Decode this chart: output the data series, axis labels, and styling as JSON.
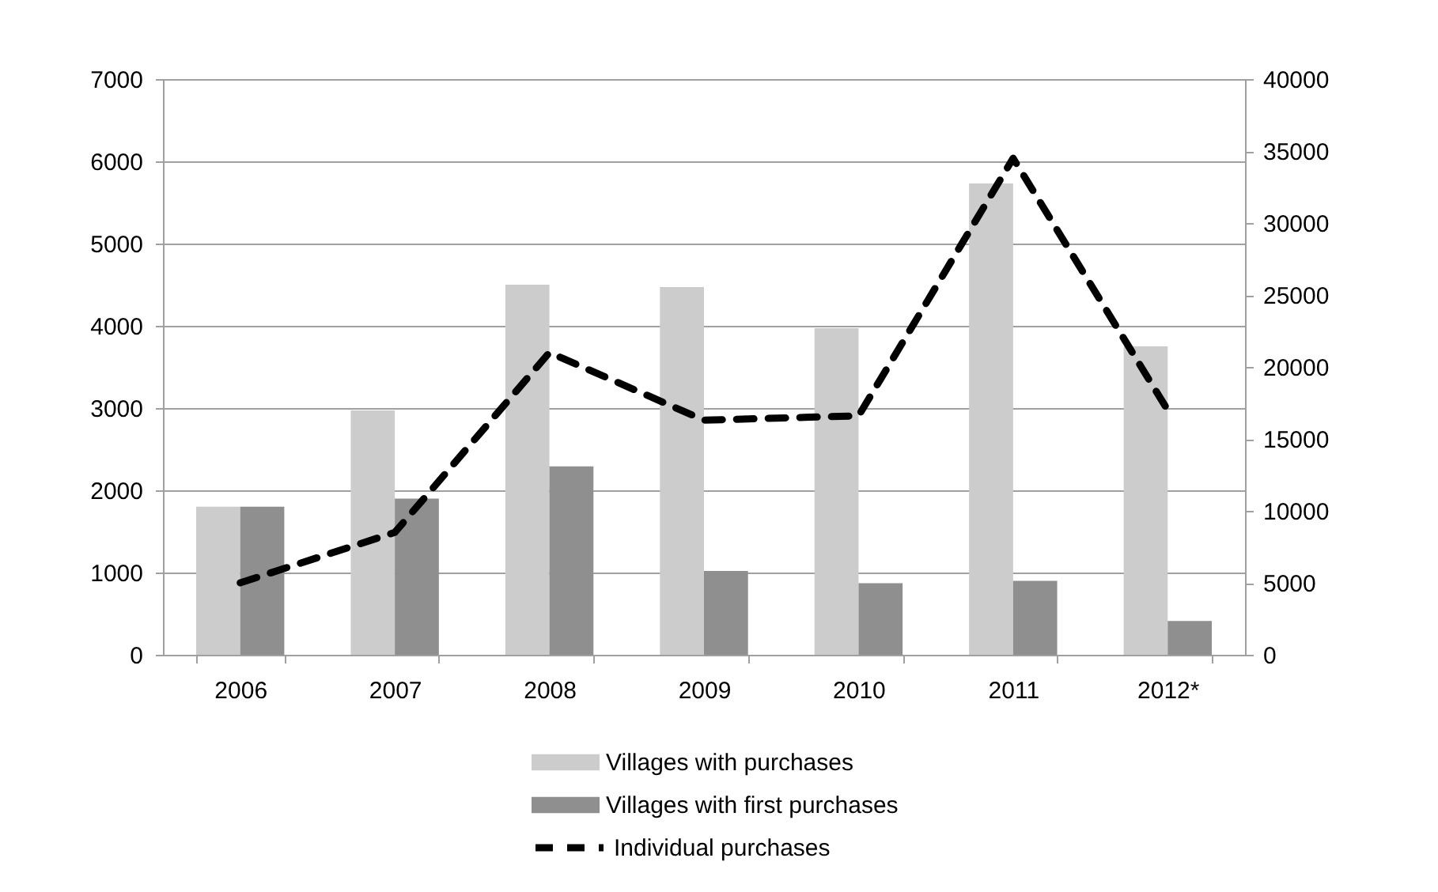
{
  "chart_data": {
    "type": "bar",
    "categories": [
      "2006",
      "2007",
      "2008",
      "2009",
      "2010",
      "2011",
      "2012*"
    ],
    "series": [
      {
        "name": "Villages with purchases",
        "color": "#cccccc",
        "values": [
          1800,
          2970,
          4500,
          4470,
          3970,
          5730,
          3750
        ]
      },
      {
        "name": "Villages with first purchases",
        "color": "#8f8f8f",
        "values": [
          1800,
          1900,
          2290,
          1020,
          870,
          900,
          410
        ]
      },
      {
        "name": "Individual purchases",
        "type": "line",
        "axis": "y2",
        "line_style": "dashed",
        "color": "#000000",
        "values": [
          5000,
          8500,
          21000,
          16300,
          16600,
          34500,
          17000
        ]
      }
    ],
    "ylim": [
      0,
      7000
    ],
    "yticks": [
      0,
      1000,
      2000,
      3000,
      4000,
      5000,
      6000,
      7000
    ],
    "y2lim": [
      0,
      40000
    ],
    "y2ticks": [
      0,
      5000,
      10000,
      15000,
      20000,
      25000,
      30000,
      35000,
      40000
    ],
    "grid": "y",
    "legend": "bottom"
  }
}
